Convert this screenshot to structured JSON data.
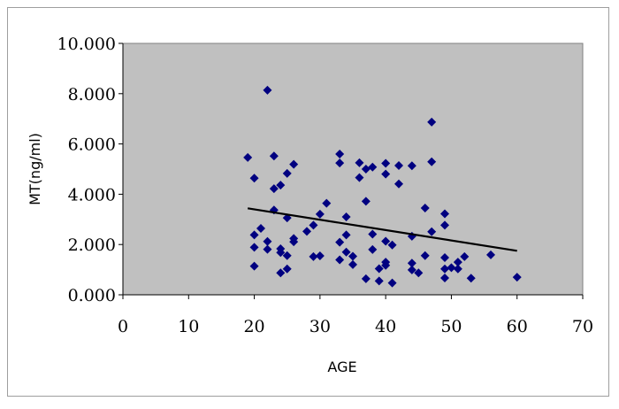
{
  "chart_data": {
    "type": "scatter",
    "title": "",
    "xlabel": "AGE",
    "ylabel": "MT(ng/ml)",
    "xlim": [
      0,
      70
    ],
    "ylim": [
      0,
      10
    ],
    "x_ticks": [
      "0",
      "10",
      "20",
      "30",
      "40",
      "50",
      "60",
      "70"
    ],
    "y_ticks": [
      "0.000",
      "2.000",
      "4.000",
      "6.000",
      "8.000",
      "10.000"
    ],
    "plot_background": "#c0c0c0",
    "marker_color": "#000080",
    "trendline_color": "#000000",
    "grid": false,
    "legend": "none",
    "series": [
      {
        "marker": "diamond",
        "points": [
          [
            19,
            5.46
          ],
          [
            20,
            4.64
          ],
          [
            20,
            2.38
          ],
          [
            20,
            1.89
          ],
          [
            20,
            1.14
          ],
          [
            21,
            2.64
          ],
          [
            22,
            8.14
          ],
          [
            22,
            2.12
          ],
          [
            22,
            1.81
          ],
          [
            23,
            5.52
          ],
          [
            23,
            4.22
          ],
          [
            23,
            3.37
          ],
          [
            24,
            4.36
          ],
          [
            24,
            1.83
          ],
          [
            24,
            1.68
          ],
          [
            24,
            0.87
          ],
          [
            25,
            4.83
          ],
          [
            25,
            3.06
          ],
          [
            25,
            1.56
          ],
          [
            25,
            1.03
          ],
          [
            26,
            5.19
          ],
          [
            26,
            2.24
          ],
          [
            26,
            2.11
          ],
          [
            28,
            2.52
          ],
          [
            29,
            2.77
          ],
          [
            29,
            1.52
          ],
          [
            30,
            3.21
          ],
          [
            30,
            1.55
          ],
          [
            31,
            3.64
          ],
          [
            33,
            5.6
          ],
          [
            33,
            5.24
          ],
          [
            33,
            2.09
          ],
          [
            33,
            1.39
          ],
          [
            34,
            3.1
          ],
          [
            34,
            2.38
          ],
          [
            34,
            1.7
          ],
          [
            35,
            1.53
          ],
          [
            35,
            1.2
          ],
          [
            36,
            5.25
          ],
          [
            36,
            4.66
          ],
          [
            37,
            5.0
          ],
          [
            37,
            3.72
          ],
          [
            37,
            0.64
          ],
          [
            38,
            5.08
          ],
          [
            38,
            2.41
          ],
          [
            38,
            1.8
          ],
          [
            39,
            1.04
          ],
          [
            39,
            0.55
          ],
          [
            40,
            5.23
          ],
          [
            40,
            4.8
          ],
          [
            40,
            2.13
          ],
          [
            40,
            1.3
          ],
          [
            40,
            1.17
          ],
          [
            41,
            1.98
          ],
          [
            41,
            0.47
          ],
          [
            42,
            5.14
          ],
          [
            42,
            4.41
          ],
          [
            44,
            5.13
          ],
          [
            44,
            2.33
          ],
          [
            44,
            1.26
          ],
          [
            44,
            0.99
          ],
          [
            45,
            0.87
          ],
          [
            46,
            3.45
          ],
          [
            46,
            1.56
          ],
          [
            47,
            6.87
          ],
          [
            47,
            5.29
          ],
          [
            47,
            2.51
          ],
          [
            49,
            3.22
          ],
          [
            49,
            2.77
          ],
          [
            49,
            1.48
          ],
          [
            49,
            1.03
          ],
          [
            49,
            0.67
          ],
          [
            50,
            1.08
          ],
          [
            51,
            1.03
          ],
          [
            51,
            1.3
          ],
          [
            52,
            1.52
          ],
          [
            53,
            0.66
          ],
          [
            56,
            1.59
          ],
          [
            60,
            0.7
          ]
        ]
      }
    ],
    "trendline": {
      "x": [
        19,
        60
      ],
      "y": [
        3.44,
        1.75
      ]
    }
  }
}
